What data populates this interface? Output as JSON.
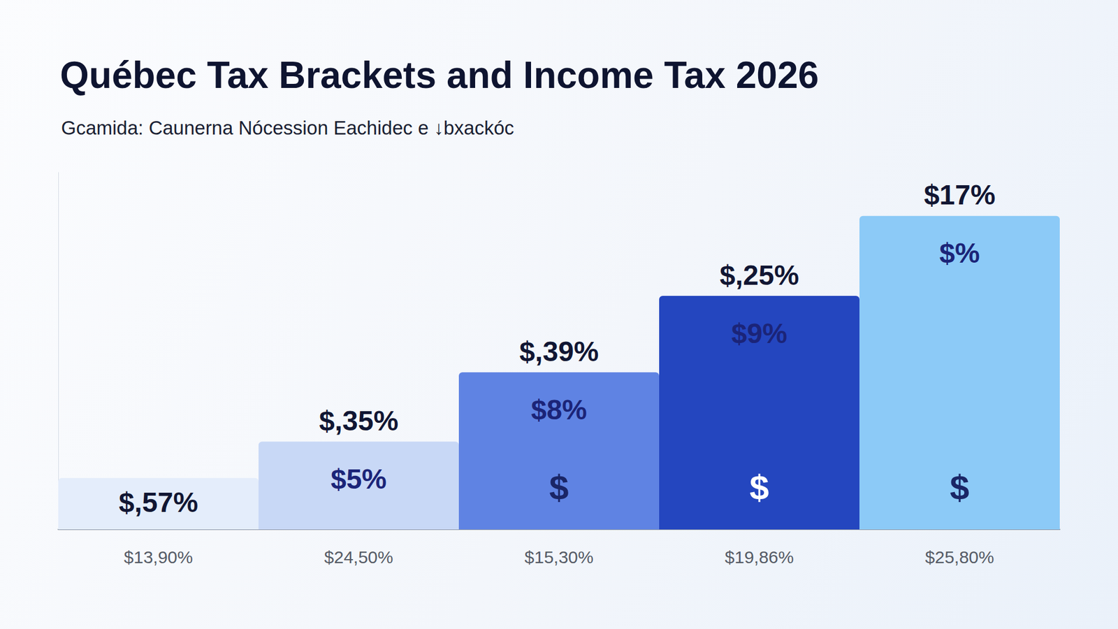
{
  "chart_data": {
    "type": "bar",
    "title": "Québec Tax Brackets and Income Tax 2026",
    "subtitle": "Gcamida: Caunerna Nócession Eachidec e ↓bxackóc",
    "categories": [
      "$13,90%",
      "$24,50%",
      "$15,30%",
      "$19,86%",
      "$25,80%"
    ],
    "values": [
      72,
      123,
      220,
      327,
      439
    ],
    "colors": [
      "#e4edfb",
      "#c8d8f6",
      "#5f83e3",
      "#2446bf",
      "#8ccaf7"
    ],
    "top_labels": [
      "$,57%",
      "$,35%",
      "$,39%",
      "$,25%",
      "$17%"
    ],
    "inner_labels": [
      null,
      "$5%",
      "$8%",
      "$9%",
      "$%"
    ],
    "icon_labels": [
      null,
      null,
      "$",
      "$",
      "$"
    ],
    "ylim": [
      0,
      500
    ],
    "tick_labels": "x",
    "grid": false
  }
}
